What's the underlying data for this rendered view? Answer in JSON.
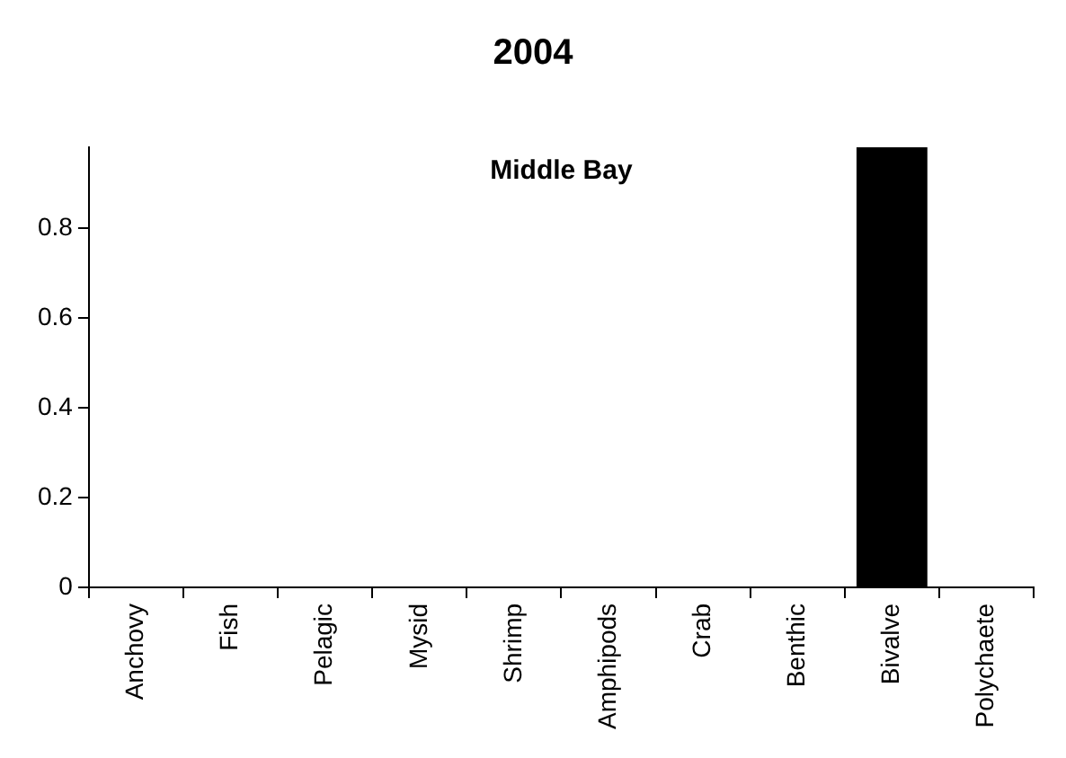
{
  "chart_data": {
    "type": "bar",
    "title": "2004",
    "annotations": [
      "Middle Bay"
    ],
    "categories": [
      "Anchovy",
      "Fish",
      "Pelagic",
      "Mysid",
      "Shrimp",
      "Amphipods",
      "Crab",
      "Benthic",
      "Bivalve",
      "Polychaete"
    ],
    "values": [
      0,
      0,
      0,
      0,
      0,
      0,
      0,
      0,
      0.98,
      0
    ],
    "color": "#000000",
    "ylim": [
      0,
      0.98
    ],
    "yticks": [
      0,
      0.2,
      0.4,
      0.6,
      0.8
    ],
    "grid": false,
    "legend": false
  }
}
